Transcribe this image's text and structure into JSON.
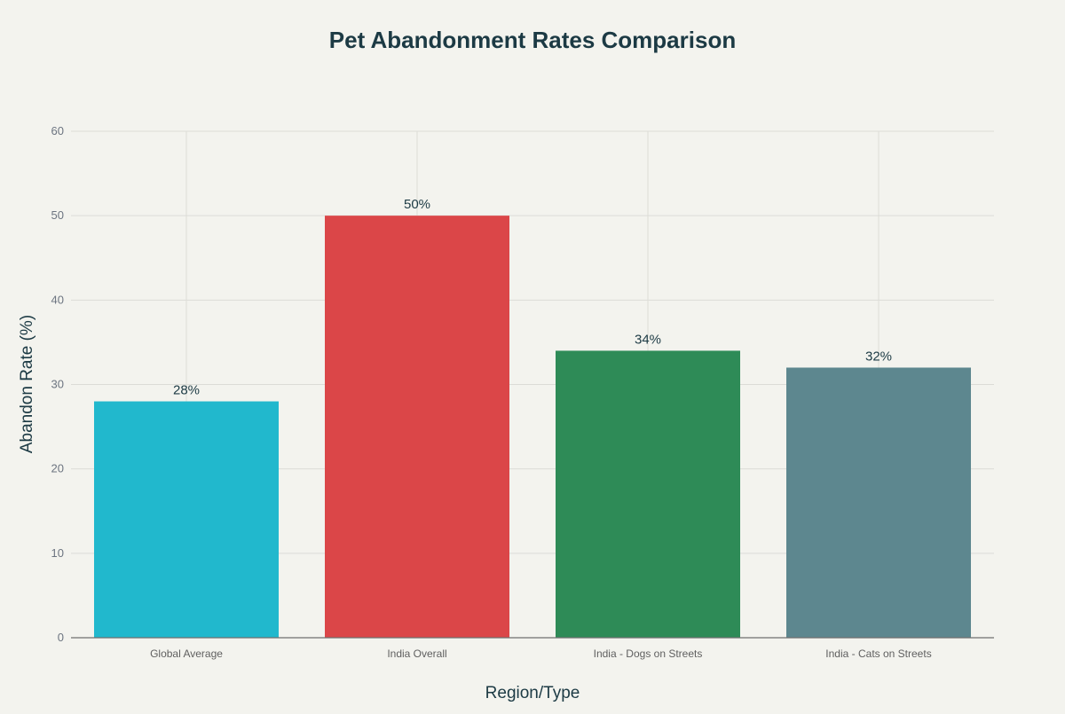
{
  "chart_data": {
    "type": "bar",
    "title": "Pet Abandonment Rates Comparison",
    "xlabel": "Region/Type",
    "ylabel": "Abandon Rate (%)",
    "categories": [
      "Global Average",
      "India Overall",
      "India - Dogs on Streets",
      "India - Cats on Streets"
    ],
    "values": [
      28,
      50,
      34,
      32
    ],
    "data_labels": [
      "28%",
      "50%",
      "34%",
      "32%"
    ],
    "colors": [
      "#21b8cd",
      "#db4648",
      "#2e8b57",
      "#5d878f"
    ],
    "ylim": [
      0,
      60
    ],
    "yticks": [
      0,
      10,
      20,
      30,
      40,
      50,
      60
    ],
    "grid": true,
    "legend": "none"
  }
}
